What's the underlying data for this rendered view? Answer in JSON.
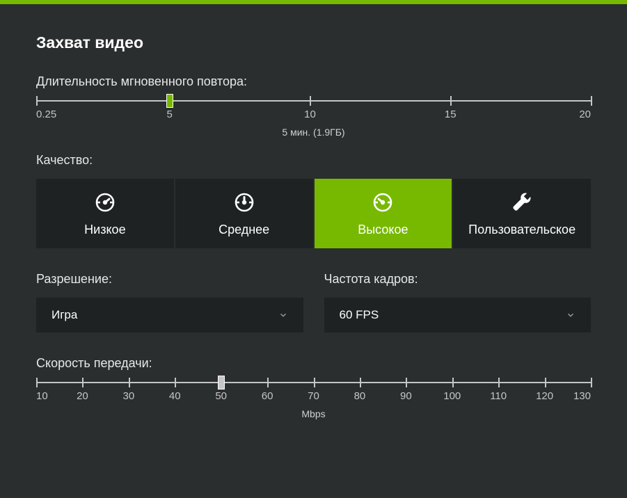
{
  "colors": {
    "accent": "#77b900",
    "bg": "#2a2e2e",
    "panel": "#1e2222",
    "text": "#ffffff",
    "muted": "#c6c6c6"
  },
  "title": "Захват видео",
  "replay": {
    "label": "Длительность мгновенного повтора:",
    "min": 0.25,
    "max": 20,
    "ticks": [
      0.25,
      5,
      10,
      15,
      20
    ],
    "tick_labels": [
      "0.25",
      "5",
      "10",
      "15",
      "20"
    ],
    "value": 5,
    "caption": "5 мин. (1.9ГБ)"
  },
  "quality": {
    "label": "Качество:",
    "selected_index": 2,
    "options": [
      {
        "label": "Низкое",
        "icon": "gauge-low"
      },
      {
        "label": "Среднее",
        "icon": "gauge-mid"
      },
      {
        "label": "Высокое",
        "icon": "gauge-high"
      },
      {
        "label": "Пользовательское",
        "icon": "wrench"
      }
    ]
  },
  "resolution": {
    "label": "Разрешение:",
    "value": "Игра"
  },
  "framerate": {
    "label": "Частота кадров:",
    "value": "60 FPS"
  },
  "bitrate": {
    "label": "Скорость передачи:",
    "min": 10,
    "max": 130,
    "ticks": [
      10,
      20,
      30,
      40,
      50,
      60,
      70,
      80,
      90,
      100,
      110,
      120,
      130
    ],
    "value": 50,
    "unit": "Mbps"
  }
}
